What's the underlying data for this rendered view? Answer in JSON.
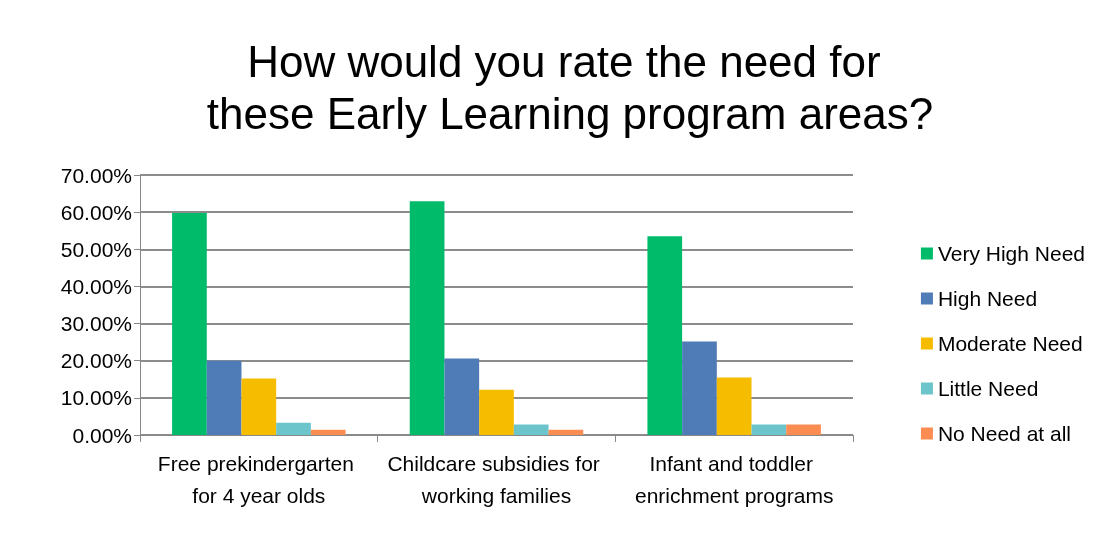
{
  "chart_data": {
    "type": "bar",
    "title": "How would you rate the need for these Early Learning program areas?",
    "categories": [
      "Free prekindergarten for 4 year olds",
      "Childcare subsidies for working families",
      "Infant and toddler enrichment programs"
    ],
    "series": [
      {
        "name": "Very High Need",
        "color": "#00bc6a",
        "values": [
          59.8,
          62.9,
          53.5
        ]
      },
      {
        "name": "High Need",
        "color": "#4f7bb7",
        "values": [
          20,
          20.6,
          25.2
        ]
      },
      {
        "name": "Moderate Need",
        "color": "#f6bc00",
        "values": [
          15.2,
          12.2,
          15.5
        ]
      },
      {
        "name": "Little Need",
        "color": "#6cc5cb",
        "values": [
          3.3,
          2.8,
          2.8
        ]
      },
      {
        "name": "No Need at all",
        "color": "#fb8c52",
        "values": [
          1.4,
          1.4,
          2.8
        ]
      }
    ],
    "ylim": [
      0,
      70
    ],
    "yticks": [
      {
        "value": 0,
        "label": "0.00%"
      },
      {
        "value": 10,
        "label": "10.00%"
      },
      {
        "value": 20,
        "label": "20.00%"
      },
      {
        "value": 30,
        "label": "30.00%"
      },
      {
        "value": 40,
        "label": "40.00%"
      },
      {
        "value": 50,
        "label": "50.00%"
      },
      {
        "value": 60,
        "label": "60.00%"
      },
      {
        "value": 70,
        "label": "70.00%"
      }
    ],
    "grid": "y",
    "legend": "right"
  }
}
